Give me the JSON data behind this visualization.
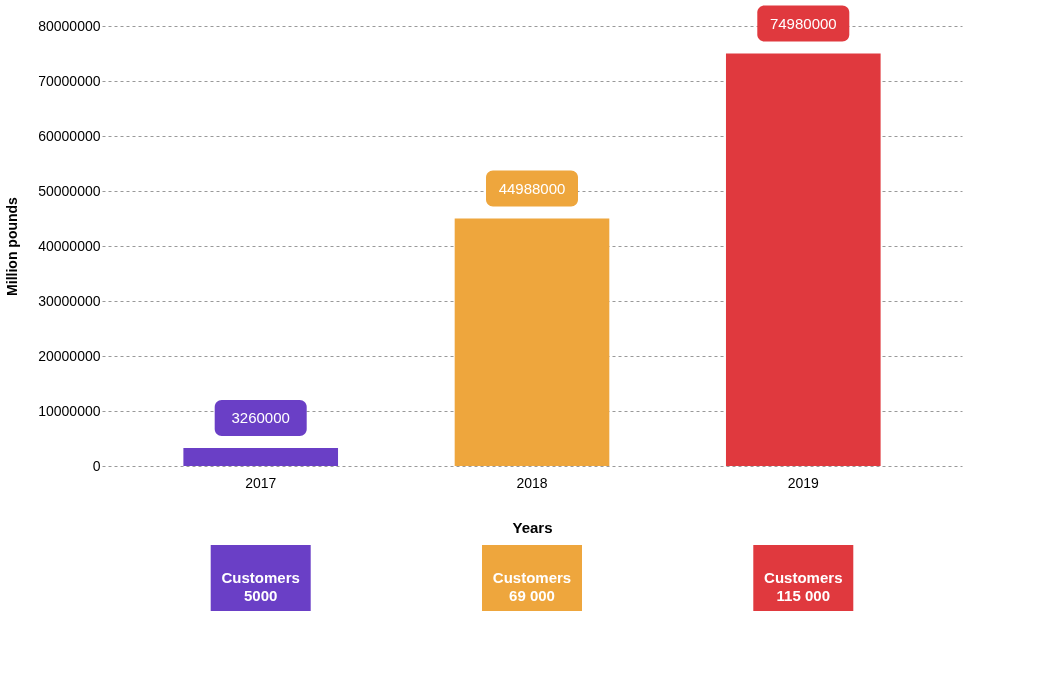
{
  "chart_data": {
    "type": "bar",
    "categories": [
      "2017",
      "2018",
      "2019"
    ],
    "values": [
      3260000,
      44988000,
      74980000
    ],
    "colors": [
      "#6a3fc6",
      "#eea63d",
      "#e0393e"
    ],
    "xlabel": "Years",
    "ylabel": "Million pounds",
    "ylim": [
      0,
      80000000
    ],
    "yticks": [
      0,
      10000000,
      20000000,
      30000000,
      40000000,
      50000000,
      60000000,
      70000000,
      80000000
    ],
    "grid": "y",
    "data_labels": true,
    "annotations": [
      "Customers 5000",
      "Customers 69 000",
      "Customers 115 000"
    ]
  }
}
